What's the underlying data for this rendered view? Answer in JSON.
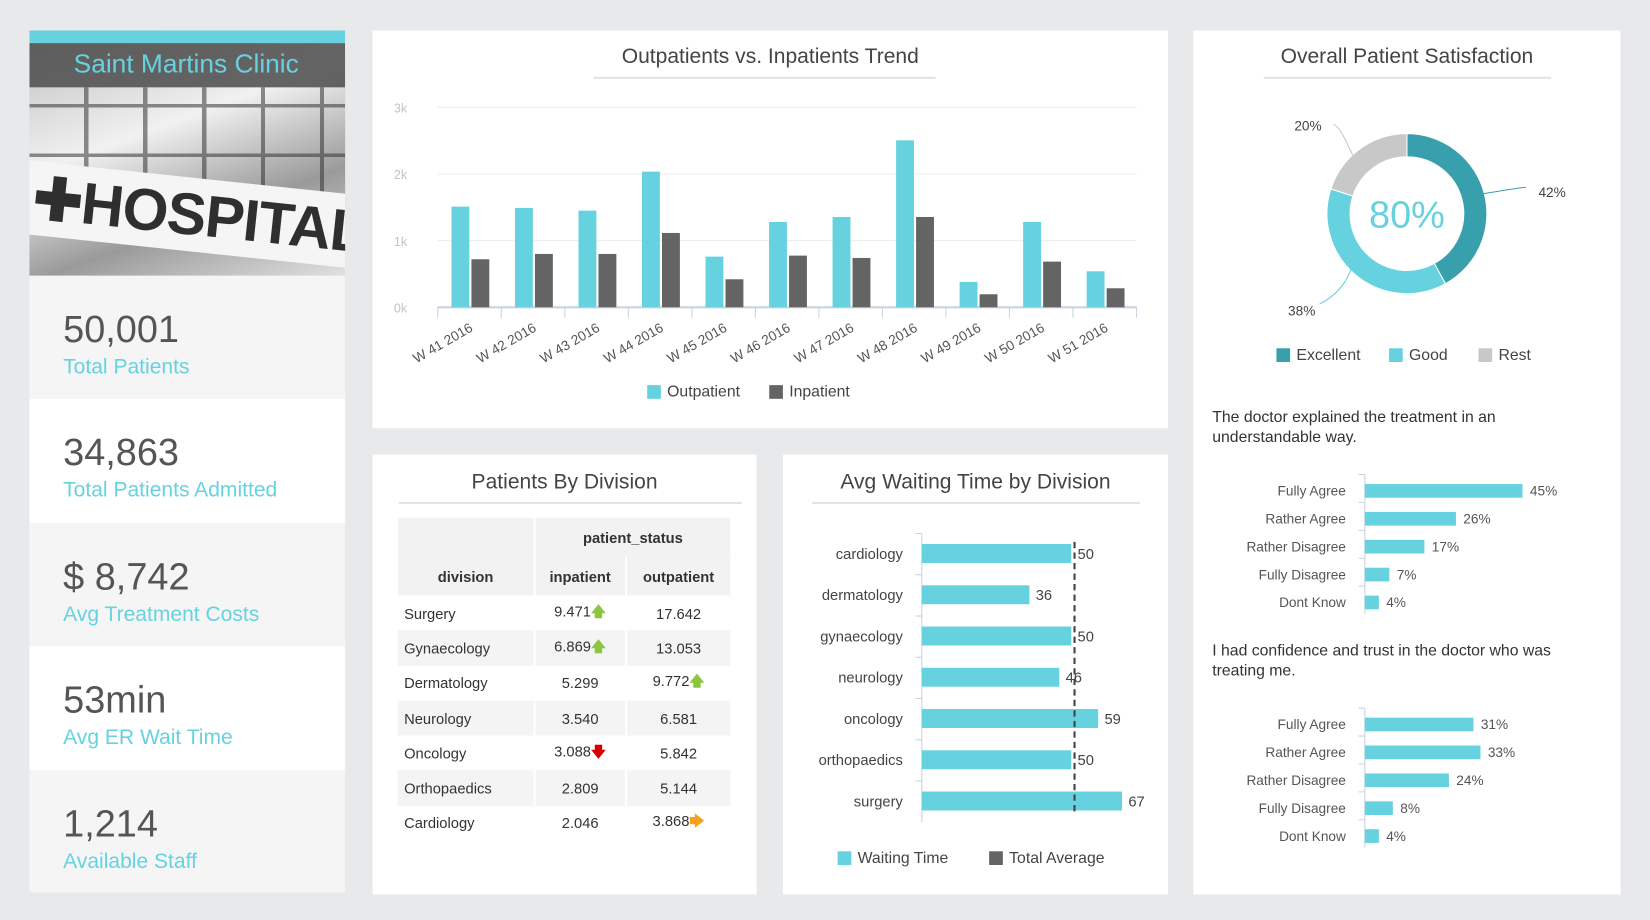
{
  "clinic": {
    "name": "Saint Martins Clinic",
    "image_text": "HOSPITAL"
  },
  "kpis": [
    {
      "value": "50,001",
      "label": "Total Patients"
    },
    {
      "value": "34,863",
      "label": "Total Patients Admitted"
    },
    {
      "value": "$ 8,742",
      "label": "Avg Treatment Costs"
    },
    {
      "value": "53min",
      "label": "Avg ER Wait Time"
    },
    {
      "value": "1,214",
      "label": "Available Staff"
    }
  ],
  "colors": {
    "accent": "#67d2df",
    "dark": "#646464",
    "excellent": "#389fac",
    "rest": "#c8c8c8",
    "up": "#8cc63f",
    "down": "#d40000",
    "neutral": "#f7a21b"
  },
  "trend": {
    "title": "Outpatients vs. Inpatients Trend",
    "chart_data": {
      "type": "bar",
      "categories": [
        "W 41 2016",
        "W 42 2016",
        "W 43 2016",
        "W 44 2016",
        "W 45 2016",
        "W 46 2016",
        "W 47 2016",
        "W 48 2016",
        "W 49 2016",
        "W 50 2016",
        "W 51 2016"
      ],
      "series": [
        {
          "name": "Outpatient",
          "values": [
            1510,
            1490,
            1450,
            2035,
            760,
            1280,
            1355,
            2505,
            380,
            1280,
            540
          ]
        },
        {
          "name": "Inpatient",
          "values": [
            720,
            800,
            800,
            1115,
            420,
            775,
            740,
            1355,
            195,
            685,
            285
          ]
        }
      ],
      "yticks": [
        "0k",
        "1k",
        "2k",
        "3k"
      ],
      "ylim": [
        0,
        3000
      ],
      "grid": true,
      "legend": "bottom"
    }
  },
  "division_table": {
    "title": "Patients By Division",
    "group_header": "patient_status",
    "columns": [
      "division",
      "inpatient",
      "outpatient"
    ],
    "rows": [
      {
        "division": "Surgery",
        "inpatient": "9.471",
        "in_trend": "up",
        "outpatient": "17.642",
        "out_trend": ""
      },
      {
        "division": "Gynaecology",
        "inpatient": "6.869",
        "in_trend": "up",
        "outpatient": "13.053",
        "out_trend": ""
      },
      {
        "division": "Dermatology",
        "inpatient": "5.299",
        "in_trend": "",
        "outpatient": "9.772",
        "out_trend": "up"
      },
      {
        "division": "Neurology",
        "inpatient": "3.540",
        "in_trend": "",
        "outpatient": "6.581",
        "out_trend": ""
      },
      {
        "division": "Oncology",
        "inpatient": "3.088",
        "in_trend": "down",
        "outpatient": "5.842",
        "out_trend": ""
      },
      {
        "division": "Orthopaedics",
        "inpatient": "2.809",
        "in_trend": "",
        "outpatient": "5.144",
        "out_trend": ""
      },
      {
        "division": "Cardiology",
        "inpatient": "2.046",
        "in_trend": "",
        "outpatient": "3.868",
        "out_trend": "right"
      }
    ]
  },
  "waiting": {
    "title": "Avg Waiting Time by Division",
    "chart_data": {
      "type": "bar",
      "orientation": "horizontal",
      "categories": [
        "cardiology",
        "dermatology",
        "gynaecology",
        "neurology",
        "oncology",
        "orthopaedics",
        "surgery"
      ],
      "series": [
        {
          "name": "Waiting Time",
          "values": [
            50,
            36,
            50,
            46,
            59,
            50,
            67
          ]
        }
      ],
      "reference_line": {
        "name": "Total Average",
        "value": 51.1
      },
      "xlim": [
        0,
        70
      ],
      "legend": "bottom"
    }
  },
  "satisfaction": {
    "title": "Overall Patient Satisfaction",
    "chart_data": {
      "type": "pie",
      "donut": true,
      "center_label": "80%",
      "categories": [
        "Excellent",
        "Good",
        "Rest"
      ],
      "values": [
        42,
        38,
        20
      ],
      "labels": [
        "42%",
        "38%",
        "20%"
      ],
      "legend": "bottom"
    },
    "questions": [
      {
        "text": "The doctor explained the treatment in an understandable way.",
        "chart_data": {
          "type": "bar",
          "orientation": "horizontal",
          "categories": [
            "Fully Agree",
            "Rather Agree",
            "Rather Disagree",
            "Fully Disagree",
            "Dont Know"
          ],
          "values": [
            45,
            26,
            17,
            7,
            4
          ],
          "labels": [
            "45%",
            "26%",
            "17%",
            "7%",
            "4%"
          ]
        }
      },
      {
        "text": "I had confidence and trust in the doctor who was treating me.",
        "chart_data": {
          "type": "bar",
          "orientation": "horizontal",
          "categories": [
            "Fully Agree",
            "Rather Agree",
            "Rather Disagree",
            "Fully Disagree",
            "Dont Know"
          ],
          "values": [
            31,
            33,
            24,
            8,
            4
          ],
          "labels": [
            "31%",
            "33%",
            "24%",
            "8%",
            "4%"
          ]
        }
      }
    ]
  }
}
